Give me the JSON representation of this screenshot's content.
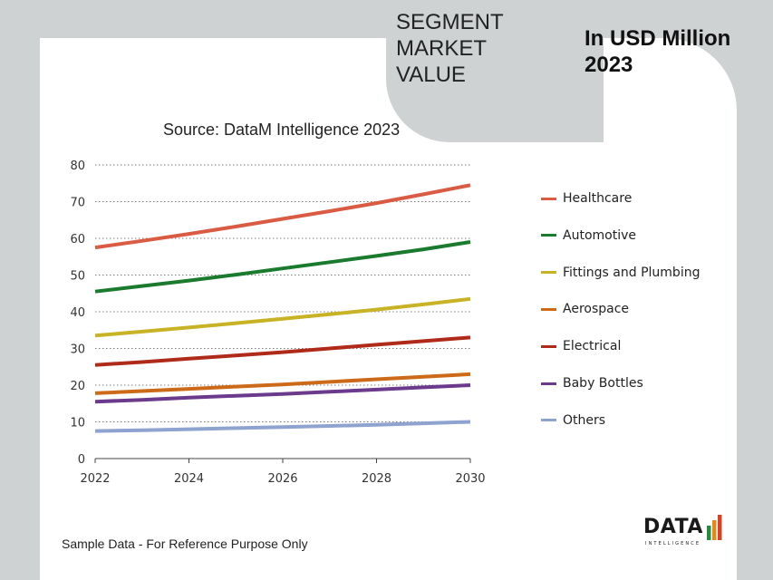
{
  "header": {
    "segment_title": [
      "SEGMENT",
      "MARKET",
      "VALUE"
    ],
    "unit_title": [
      "In USD Million",
      "2023"
    ]
  },
  "footer": {
    "note": "Sample Data - For Reference Purpose Only",
    "logo": {
      "text": "DATA",
      "subtext": "INTELLIGENCE",
      "colors": [
        "#2a8a3e",
        "#e08a1e",
        "#d0442c"
      ]
    }
  },
  "chart_data": {
    "type": "line",
    "title": "Source: DataM Intelligence 2023",
    "xlabel": "",
    "ylabel": "",
    "x": [
      2022,
      2023,
      2024,
      2025,
      2026,
      2027,
      2028,
      2029,
      2030
    ],
    "x_ticks": [
      2022,
      2024,
      2026,
      2028,
      2030
    ],
    "y_ticks": [
      0,
      10,
      20,
      30,
      40,
      50,
      60,
      70,
      80
    ],
    "xlim": [
      2022,
      2030
    ],
    "ylim": [
      0,
      80
    ],
    "grid": "horizontal dotted",
    "legend_position": "right",
    "series": [
      {
        "name": "Healthcare",
        "color": "#d95b43",
        "values": [
          57.5,
          59.3,
          61.2,
          63.2,
          65.3,
          67.4,
          69.6,
          72.0,
          74.5
        ]
      },
      {
        "name": "Automotive",
        "color": "#1a7a2e",
        "values": [
          45.5,
          47.0,
          48.5,
          50.1,
          51.8,
          53.5,
          55.2,
          57.0,
          59.0
        ]
      },
      {
        "name": "Fittings and Plumbing",
        "color": "#c8b226",
        "values": [
          33.5,
          34.6,
          35.7,
          36.9,
          38.1,
          39.3,
          40.6,
          42.0,
          43.5
        ]
      },
      {
        "name": "Aerospace",
        "color": "#cc6a1a",
        "values": [
          17.8,
          18.4,
          19.0,
          19.6,
          20.2,
          20.9,
          21.6,
          22.3,
          23.0
        ]
      },
      {
        "name": "Electrical",
        "color": "#b02a1a",
        "values": [
          25.5,
          26.3,
          27.2,
          28.1,
          29.0,
          30.0,
          31.0,
          32.0,
          33.0
        ]
      },
      {
        "name": "Baby Bottles",
        "color": "#6b3a8c",
        "values": [
          15.5,
          16.0,
          16.6,
          17.1,
          17.6,
          18.2,
          18.8,
          19.4,
          20.0
        ]
      },
      {
        "name": "Others",
        "color": "#8fa3d0",
        "values": [
          7.5,
          7.7,
          8.0,
          8.3,
          8.6,
          8.9,
          9.2,
          9.6,
          10.0
        ]
      }
    ]
  }
}
